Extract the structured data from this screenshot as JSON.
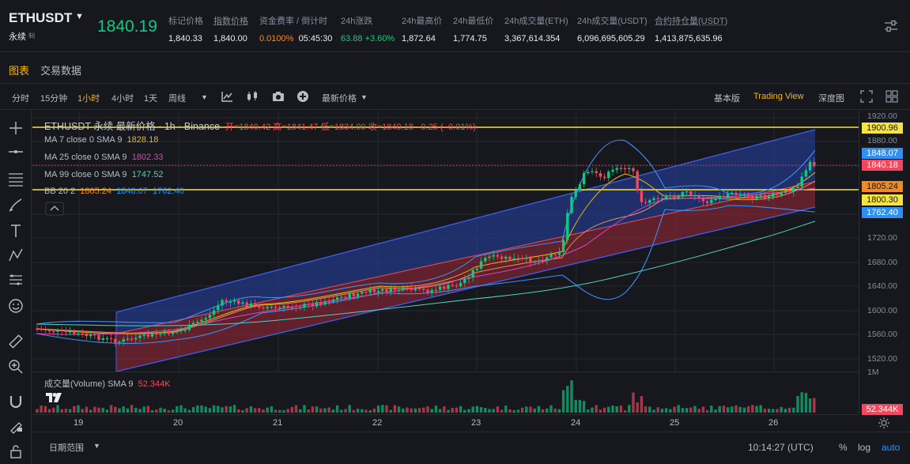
{
  "header": {
    "symbol": "ETHUSDT",
    "contract": "永续",
    "contract_tag": "制",
    "last_price": "1840.19",
    "stats": [
      {
        "label": "标记价格",
        "value": "1,840.33"
      },
      {
        "label": "指数价格",
        "value": "1,840.00"
      },
      {
        "label": "资金费率 / 倒计时",
        "value": "0.0100%",
        "value2": "05:45:30"
      },
      {
        "label": "24h涨跌",
        "value": "63.88 +3.60%"
      },
      {
        "label": "24h最高价",
        "value": "1,872.64"
      },
      {
        "label": "24h最低价",
        "value": "1,774.75"
      },
      {
        "label": "24h成交量(ETH)",
        "value": "3,367,614.354"
      },
      {
        "label": "24h成交量(USDT)",
        "value": "6,096,695,605.29"
      },
      {
        "label": "合约持仓量(USDT)",
        "value": "1,413,875,635.96"
      }
    ]
  },
  "tabs": [
    "图表",
    "交易数据"
  ],
  "toolbar": {
    "intervals": [
      "分时",
      "15分钟",
      "1小时",
      "4小时",
      "1天",
      "周线"
    ],
    "active_interval": "1小时",
    "price_type": "最新价格",
    "views": [
      "基本版",
      "Trading View",
      "深度图"
    ],
    "active_view": "Trading View"
  },
  "chart": {
    "title_line": "ETHUSDT 永续 最新价格 · 1h · Binance",
    "ohlc": "开=1840.42  高=1841.47  低=1834.00  收=1840.18  −0.25 (−0.01%)",
    "ma7": {
      "label": "MA 7 close 0 SMA 9",
      "value": "1828.18"
    },
    "ma25": {
      "label": "MA 25 close 0 SMA 9",
      "value": "1802.33"
    },
    "ma99": {
      "label": "MA 99 close 0 SMA 9",
      "value": "1747.52"
    },
    "bb": {
      "label": "BB 20 2",
      "v1": "1805.24",
      "v2": "1848.07",
      "v3": "1762.40"
    },
    "volume_label": "成交量(Volume) SMA 9",
    "volume_value": "52.344K",
    "price_ticks": [
      "1920.00",
      "1880.00",
      "1720.00",
      "1680.00",
      "1640.00",
      "1600.00",
      "1560.00",
      "1520.00"
    ],
    "price_tags": [
      {
        "value": "1900.96",
        "color": "#f5e342"
      },
      {
        "value": "1848.07",
        "color": "#2f8ff5"
      },
      {
        "value": "1840.18",
        "color": "#f6465d"
      },
      {
        "value": "1805.24",
        "color": "#f08a24"
      },
      {
        "value": "1800.30",
        "color": "#f5e342"
      },
      {
        "value": "1762.40",
        "color": "#2f8ff5"
      }
    ],
    "volume_axis_label": "1M",
    "date_ticks": [
      "19",
      "20",
      "21",
      "22",
      "23",
      "24",
      "25",
      "26"
    ]
  },
  "bottombar": {
    "range_label": "日期范围",
    "time": "10:14:27 (UTC)",
    "percent": "%",
    "log": "log",
    "auto": "auto"
  },
  "colors": {
    "up": "#0ecb81",
    "down": "#f6465d",
    "accent": "#f0b90b"
  }
}
